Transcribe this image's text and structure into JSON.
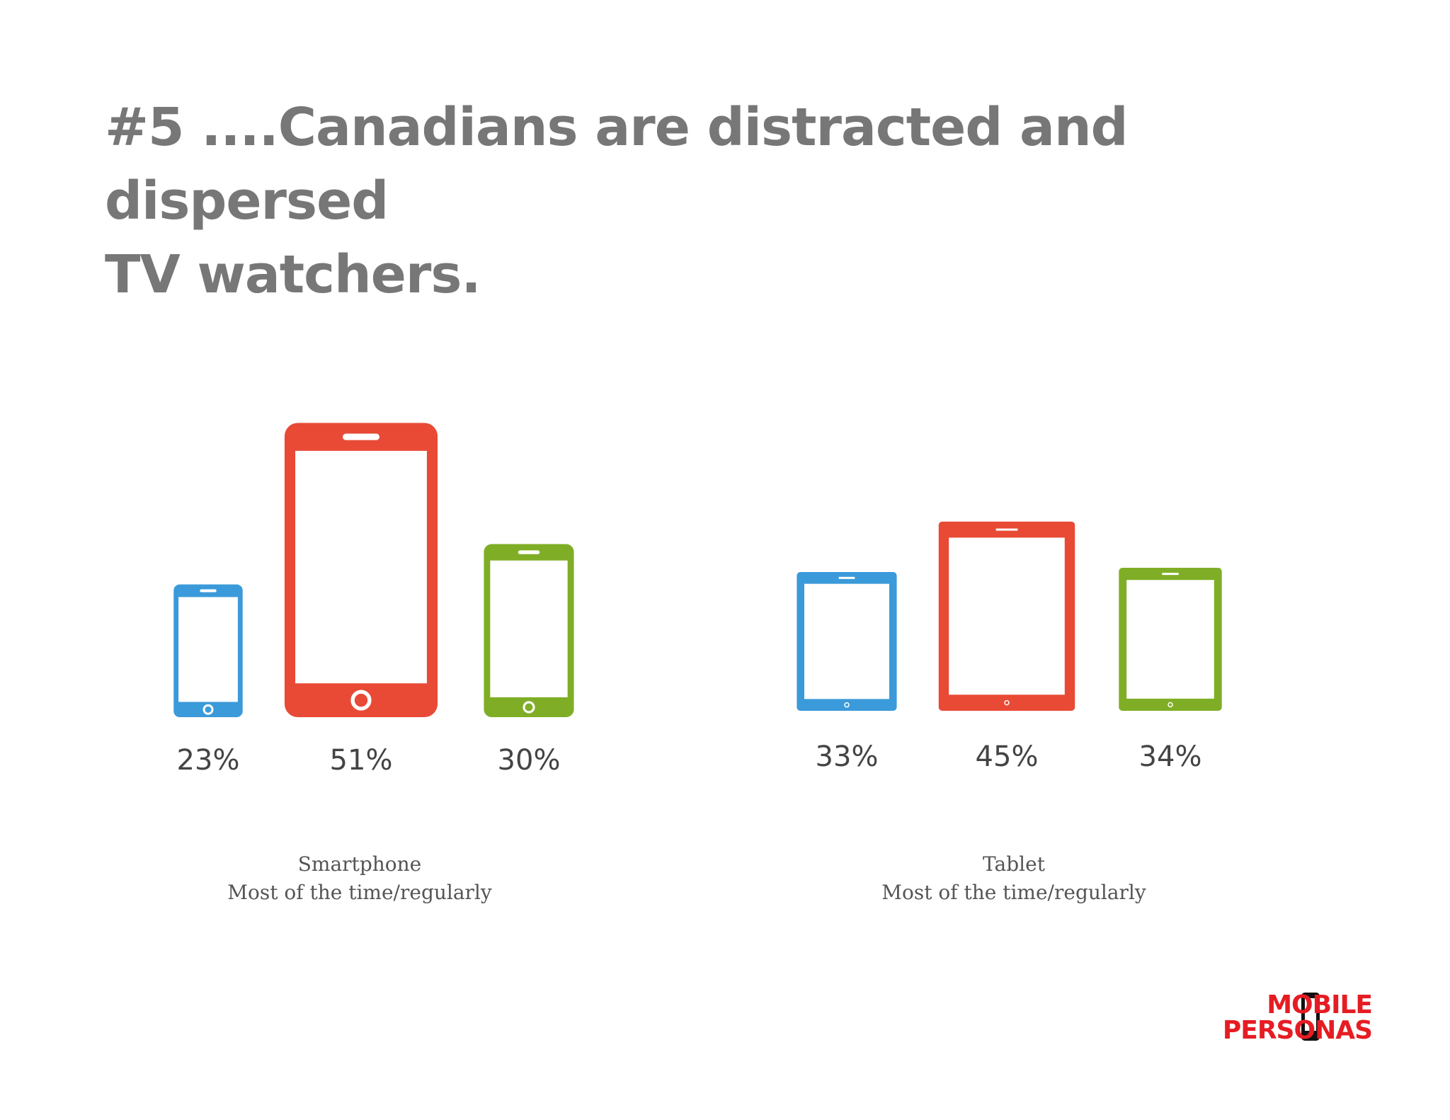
{
  "title": {
    "line1": "#5 ....Canadians are distracted and dispersed",
    "line2": "TV watchers."
  },
  "colors": {
    "blue": "#3b9ad9",
    "red": "#e84a36",
    "green": "#7fae26",
    "title": "#777777",
    "brand_red": "#e51d23"
  },
  "chart_data": [
    {
      "type": "bar",
      "device_icon": "smartphone-icon",
      "categories": [
        "",
        "",
        ""
      ],
      "values": [
        23,
        51,
        30
      ],
      "value_labels": [
        "23%",
        "51%",
        "30%"
      ],
      "bar_colors": [
        "#3b9ad9",
        "#e84a36",
        "#7fae26"
      ],
      "caption_line1": "Smartphone",
      "caption_line2": "Most of the time/regularly"
    },
    {
      "type": "bar",
      "device_icon": "tablet-icon",
      "categories": [
        "",
        "",
        ""
      ],
      "values": [
        33,
        45,
        34
      ],
      "value_labels": [
        "33%",
        "45%",
        "34%"
      ],
      "bar_colors": [
        "#3b9ad9",
        "#e84a36",
        "#7fae26"
      ],
      "caption_line1": "Tablet",
      "caption_line2": "Most of the time/regularly"
    }
  ],
  "logo": {
    "line1": "MOBILE",
    "line2": "PERSONAS"
  }
}
